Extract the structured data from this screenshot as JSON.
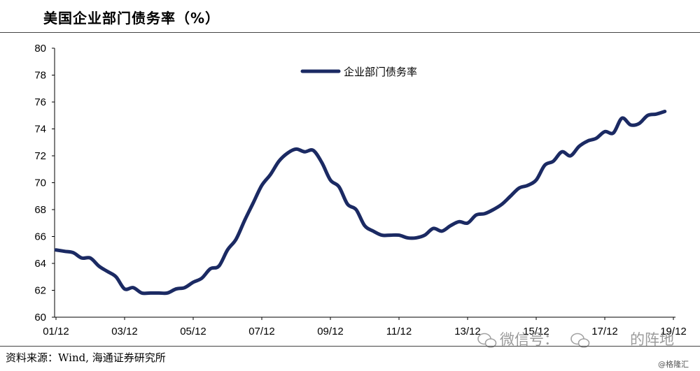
{
  "title": "美国企业部门债务率（%）",
  "source": "资料来源：Wind, 海通证券研究所",
  "credit": "@格隆汇",
  "watermark": {
    "prefix": "微信号：",
    "suffix": "的阵地",
    "icon": "wechat-icon"
  },
  "colors": {
    "series": "#1b2a63",
    "axis": "#000000",
    "rule": "#444444",
    "watermark": "#8a8a8a"
  },
  "chart_data": {
    "type": "line",
    "title": "美国企业部门债务率（%）",
    "xlabel": "",
    "ylabel": "",
    "ylim": [
      60,
      80
    ],
    "y_ticks": [
      "60",
      "62",
      "64",
      "66",
      "68",
      "70",
      "72",
      "74",
      "76",
      "78",
      "80"
    ],
    "x_ticks": [
      "01/12",
      "03/12",
      "05/12",
      "07/12",
      "09/12",
      "11/12",
      "13/12",
      "15/12",
      "17/12",
      "19/12"
    ],
    "grid": false,
    "legend": "top-center",
    "x": [
      "01/12",
      "02/03",
      "02/06",
      "02/09",
      "02/12",
      "03/03",
      "03/06",
      "03/09",
      "03/12",
      "04/03",
      "04/06",
      "04/09",
      "04/12",
      "05/03",
      "05/06",
      "05/09",
      "05/12",
      "06/03",
      "06/06",
      "06/09",
      "06/12",
      "07/03",
      "07/06",
      "07/09",
      "07/12",
      "08/03",
      "08/06",
      "08/09",
      "08/12",
      "09/03",
      "09/06",
      "09/09",
      "09/12",
      "10/03",
      "10/06",
      "10/09",
      "10/12",
      "11/03",
      "11/06",
      "11/09",
      "11/12",
      "12/03",
      "12/06",
      "12/09",
      "12/12",
      "13/03",
      "13/06",
      "13/09",
      "13/12",
      "14/03",
      "14/06",
      "14/09",
      "14/12",
      "15/03",
      "15/06",
      "15/09",
      "15/12",
      "16/03",
      "16/06",
      "16/09",
      "16/12",
      "17/03",
      "17/06",
      "17/09",
      "17/12",
      "18/03",
      "18/06",
      "18/09",
      "18/12",
      "19/03",
      "19/06",
      "19/09"
    ],
    "series": [
      {
        "name": "企业部门债务率",
        "color": "#1b2a63",
        "values": [
          65.0,
          64.9,
          64.8,
          64.4,
          64.4,
          63.8,
          63.4,
          63.0,
          62.1,
          62.2,
          61.8,
          61.8,
          61.8,
          61.8,
          62.1,
          62.2,
          62.6,
          62.9,
          63.6,
          63.8,
          65.0,
          65.8,
          67.2,
          68.5,
          69.8,
          70.6,
          71.6,
          72.2,
          72.5,
          72.3,
          72.4,
          71.5,
          70.2,
          69.7,
          68.4,
          68.0,
          66.8,
          66.4,
          66.1,
          66.1,
          66.1,
          65.9,
          65.9,
          66.1,
          66.6,
          66.4,
          66.8,
          67.1,
          67.0,
          67.6,
          67.7,
          68.0,
          68.4,
          69.0,
          69.6,
          69.8,
          70.2,
          71.3,
          71.6,
          72.3,
          72.0,
          72.7,
          73.1,
          73.3,
          73.8,
          73.7,
          74.8,
          74.3,
          74.4,
          75.0,
          75.1,
          75.3
        ]
      }
    ]
  }
}
